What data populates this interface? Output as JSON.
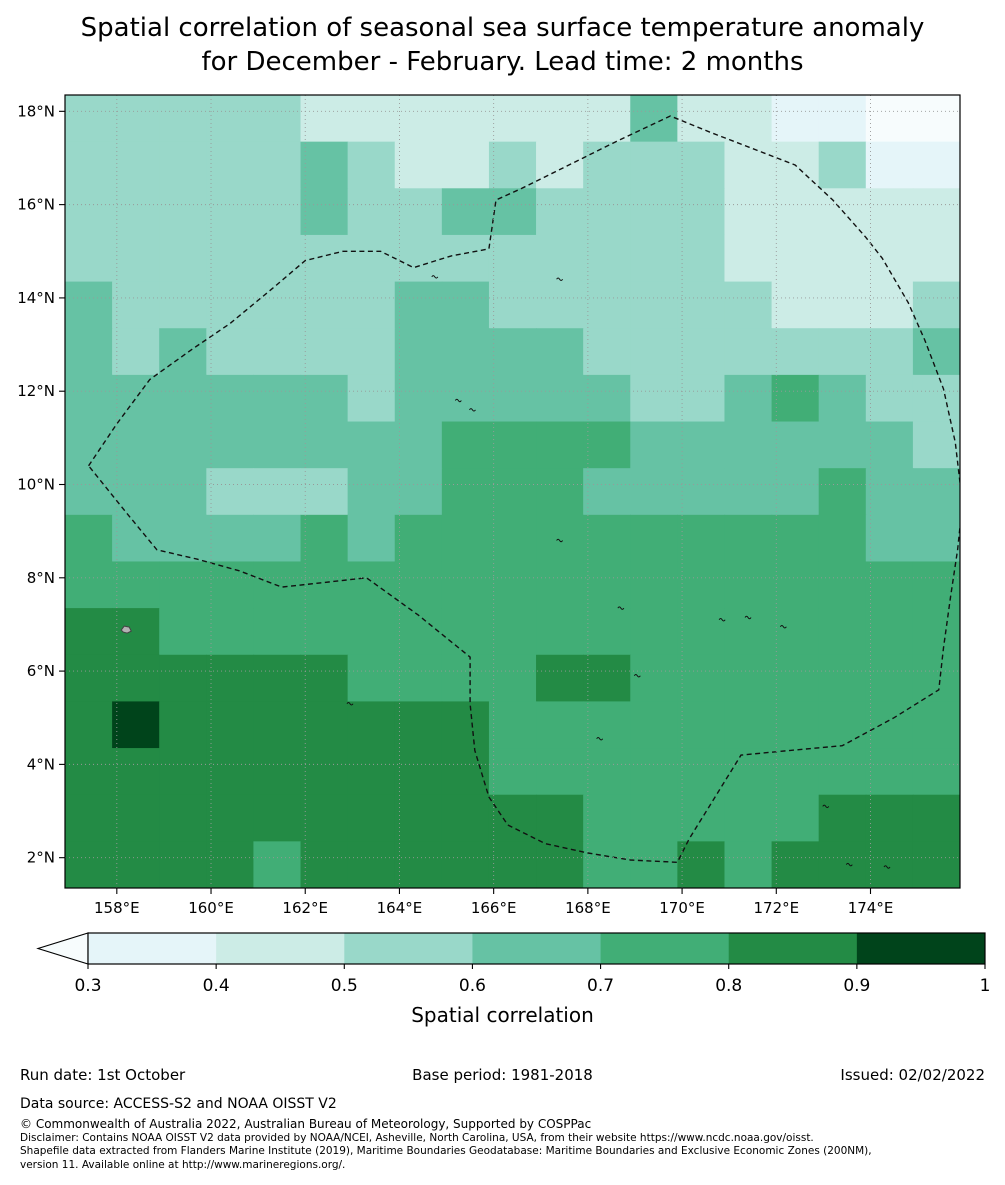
{
  "title": "Spatial correlation of seasonal sea surface temperature anomaly\nfor December - February. Lead time: 2 months",
  "chart_data": {
    "type": "heatmap",
    "title": "Spatial correlation of seasonal sea surface temperature anomaly for December - February. Lead time: 2 months",
    "xlabel": "",
    "ylabel": "",
    "lon_range": [
      156.9,
      175.9
    ],
    "lat_range": [
      1.35,
      18.35
    ],
    "cell_deg": 1.0,
    "x_ticks": [
      158,
      160,
      162,
      164,
      166,
      168,
      170,
      172,
      174
    ],
    "x_tick_labels": [
      "158°E",
      "160°E",
      "162°E",
      "164°E",
      "166°E",
      "168°E",
      "170°E",
      "172°E",
      "174°E"
    ],
    "y_ticks": [
      2,
      4,
      6,
      8,
      10,
      12,
      14,
      16,
      18
    ],
    "y_tick_labels": [
      "2°N",
      "4°N",
      "6°N",
      "8°N",
      "10°N",
      "12°N",
      "14°N",
      "16°N",
      "18°N"
    ],
    "grid_on": true,
    "levels": [
      0.3,
      0.4,
      0.5,
      0.6,
      0.7,
      0.8,
      0.9,
      1.0
    ],
    "band_colors": [
      "#e5f5f9",
      "#ccece6",
      "#99d8c9",
      "#66c2a4",
      "#41ae76",
      "#238b45",
      "#00441b"
    ],
    "under_color": "#f7fcfd",
    "boundary_color": "#111111",
    "gridline_color": "#999999",
    "grid_values_note": "rows top-to-bottom lat 18.35->1.35, cols left-to-right lon 156.9->175.9, values are 0.1-band midpoints of spatial correlation",
    "grid_values": [
      [
        0.55,
        0.55,
        0.55,
        0.55,
        0.55,
        0.45,
        0.45,
        0.45,
        0.45,
        0.45,
        0.45,
        0.45,
        0.65,
        0.45,
        0.45,
        0.35,
        0.35,
        0.25,
        0.25
      ],
      [
        0.55,
        0.55,
        0.55,
        0.55,
        0.55,
        0.65,
        0.55,
        0.45,
        0.45,
        0.55,
        0.45,
        0.55,
        0.55,
        0.55,
        0.45,
        0.45,
        0.55,
        0.35,
        0.35
      ],
      [
        0.55,
        0.55,
        0.55,
        0.55,
        0.55,
        0.65,
        0.55,
        0.55,
        0.65,
        0.65,
        0.55,
        0.55,
        0.55,
        0.55,
        0.45,
        0.45,
        0.45,
        0.45,
        0.45
      ],
      [
        0.55,
        0.55,
        0.55,
        0.55,
        0.55,
        0.55,
        0.55,
        0.55,
        0.55,
        0.55,
        0.55,
        0.55,
        0.55,
        0.55,
        0.45,
        0.45,
        0.45,
        0.45,
        0.45
      ],
      [
        0.65,
        0.55,
        0.55,
        0.55,
        0.55,
        0.55,
        0.55,
        0.65,
        0.65,
        0.55,
        0.55,
        0.55,
        0.55,
        0.55,
        0.55,
        0.45,
        0.45,
        0.45,
        0.55
      ],
      [
        0.65,
        0.55,
        0.65,
        0.55,
        0.55,
        0.55,
        0.55,
        0.65,
        0.65,
        0.65,
        0.65,
        0.55,
        0.55,
        0.55,
        0.55,
        0.55,
        0.55,
        0.55,
        0.65
      ],
      [
        0.65,
        0.65,
        0.65,
        0.65,
        0.65,
        0.65,
        0.55,
        0.65,
        0.65,
        0.65,
        0.65,
        0.65,
        0.55,
        0.55,
        0.65,
        0.75,
        0.65,
        0.55,
        0.55
      ],
      [
        0.65,
        0.65,
        0.65,
        0.65,
        0.65,
        0.65,
        0.65,
        0.65,
        0.75,
        0.75,
        0.75,
        0.75,
        0.65,
        0.65,
        0.65,
        0.65,
        0.65,
        0.65,
        0.55
      ],
      [
        0.65,
        0.65,
        0.65,
        0.55,
        0.55,
        0.55,
        0.65,
        0.65,
        0.75,
        0.75,
        0.75,
        0.65,
        0.65,
        0.65,
        0.65,
        0.65,
        0.75,
        0.65,
        0.65
      ],
      [
        0.75,
        0.65,
        0.65,
        0.65,
        0.65,
        0.75,
        0.65,
        0.75,
        0.75,
        0.75,
        0.75,
        0.75,
        0.75,
        0.75,
        0.75,
        0.75,
        0.75,
        0.65,
        0.65
      ],
      [
        0.75,
        0.75,
        0.75,
        0.75,
        0.75,
        0.75,
        0.75,
        0.75,
        0.75,
        0.75,
        0.75,
        0.75,
        0.75,
        0.75,
        0.75,
        0.75,
        0.75,
        0.75,
        0.75
      ],
      [
        0.85,
        0.85,
        0.75,
        0.75,
        0.75,
        0.75,
        0.75,
        0.75,
        0.75,
        0.75,
        0.75,
        0.75,
        0.75,
        0.75,
        0.75,
        0.75,
        0.75,
        0.75,
        0.75
      ],
      [
        0.85,
        0.85,
        0.85,
        0.85,
        0.85,
        0.85,
        0.75,
        0.75,
        0.75,
        0.75,
        0.85,
        0.85,
        0.75,
        0.75,
        0.75,
        0.75,
        0.75,
        0.75,
        0.75
      ],
      [
        0.85,
        0.95,
        0.85,
        0.85,
        0.85,
        0.85,
        0.85,
        0.85,
        0.85,
        0.75,
        0.75,
        0.75,
        0.75,
        0.75,
        0.75,
        0.75,
        0.75,
        0.75,
        0.75
      ],
      [
        0.85,
        0.85,
        0.85,
        0.85,
        0.85,
        0.85,
        0.85,
        0.85,
        0.85,
        0.75,
        0.75,
        0.75,
        0.75,
        0.75,
        0.75,
        0.75,
        0.75,
        0.75,
        0.75
      ],
      [
        0.85,
        0.85,
        0.85,
        0.85,
        0.85,
        0.85,
        0.85,
        0.85,
        0.85,
        0.85,
        0.85,
        0.75,
        0.75,
        0.75,
        0.75,
        0.75,
        0.85,
        0.85,
        0.85
      ],
      [
        0.85,
        0.85,
        0.85,
        0.85,
        0.75,
        0.85,
        0.85,
        0.85,
        0.85,
        0.85,
        0.85,
        0.75,
        0.75,
        0.85,
        0.75,
        0.85,
        0.85,
        0.85,
        0.85
      ]
    ],
    "boundary": [
      [
        157.4,
        10.4
      ],
      [
        158.0,
        11.3
      ],
      [
        158.7,
        12.25
      ],
      [
        159.6,
        12.9
      ],
      [
        160.4,
        13.45
      ],
      [
        161.3,
        14.2
      ],
      [
        162.0,
        14.8
      ],
      [
        162.8,
        15.0
      ],
      [
        163.6,
        15.0
      ],
      [
        164.3,
        14.65
      ],
      [
        165.1,
        14.9
      ],
      [
        165.9,
        15.05
      ],
      [
        166.05,
        16.1
      ],
      [
        166.6,
        16.35
      ],
      [
        167.5,
        16.8
      ],
      [
        168.6,
        17.35
      ],
      [
        169.75,
        17.9
      ],
      [
        170.6,
        17.55
      ],
      [
        171.5,
        17.2
      ],
      [
        172.4,
        16.85
      ],
      [
        173.2,
        16.1
      ],
      [
        173.9,
        15.3
      ],
      [
        174.25,
        14.85
      ],
      [
        174.8,
        13.9
      ],
      [
        175.15,
        13.1
      ],
      [
        175.55,
        12.05
      ],
      [
        175.8,
        10.9
      ],
      [
        175.95,
        9.6
      ],
      [
        175.85,
        8.6
      ],
      [
        175.7,
        7.6
      ],
      [
        175.55,
        6.5
      ],
      [
        175.45,
        5.6
      ],
      [
        174.5,
        5.0
      ],
      [
        173.4,
        4.4
      ],
      [
        172.3,
        4.3
      ],
      [
        171.25,
        4.2
      ],
      [
        170.7,
        3.3
      ],
      [
        170.15,
        2.4
      ],
      [
        169.9,
        1.9
      ],
      [
        168.9,
        1.95
      ],
      [
        168.0,
        2.1
      ],
      [
        167.1,
        2.3
      ],
      [
        166.3,
        2.7
      ],
      [
        165.9,
        3.3
      ],
      [
        165.6,
        4.3
      ],
      [
        165.5,
        5.3
      ],
      [
        165.5,
        6.3
      ],
      [
        164.4,
        7.2
      ],
      [
        163.3,
        8.0
      ],
      [
        162.4,
        7.9
      ],
      [
        161.5,
        7.8
      ],
      [
        160.6,
        8.15
      ],
      [
        159.7,
        8.4
      ],
      [
        158.85,
        8.6
      ],
      [
        158.2,
        9.4
      ]
    ],
    "gray_island": [
      158.2,
      6.9
    ],
    "islands": [
      [
        162.95,
        5.3
      ],
      [
        165.25,
        11.8
      ],
      [
        165.55,
        11.6
      ],
      [
        167.4,
        8.8
      ],
      [
        168.7,
        7.35
      ],
      [
        169.05,
        5.9
      ],
      [
        170.85,
        7.1
      ],
      [
        171.4,
        7.15
      ],
      [
        172.15,
        6.95
      ],
      [
        168.25,
        4.55
      ],
      [
        173.05,
        3.1
      ],
      [
        173.55,
        1.85
      ],
      [
        174.35,
        1.8
      ],
      [
        164.75,
        14.45
      ],
      [
        167.4,
        14.4
      ]
    ],
    "colorbar": {
      "label": "Spatial correlation",
      "tick_labels": [
        "0.3",
        "0.4",
        "0.5",
        "0.6",
        "0.7",
        "0.8",
        "0.9",
        "1"
      ],
      "orientation": "horizontal",
      "extend": "min"
    }
  },
  "footer": {
    "run_date": "Run date: 1st October",
    "base_period": "Base period: 1981-2018",
    "issued": "Issued: 02/02/2022",
    "data_source": "Data source: ACCESS-S2 and NOAA OISST V2",
    "copyright": "© Commonwealth of Australia 2022, Australian Bureau of Meteorology, Supported by COSPPac",
    "disclaimer": "Disclaimer: Contains NOAA OISST V2 data provided by NOAA/NCEI, Asheville, North Carolina, USA, from their website https://www.ncdc.noaa.gov/oisst.",
    "shapefile_note": "Shapefile data extracted from Flanders Marine Institute (2019), Maritime Boundaries Geodatabase: Maritime Boundaries and Exclusive Economic Zones (200NM),\nversion 11. Available online at http://www.marineregions.org/."
  }
}
